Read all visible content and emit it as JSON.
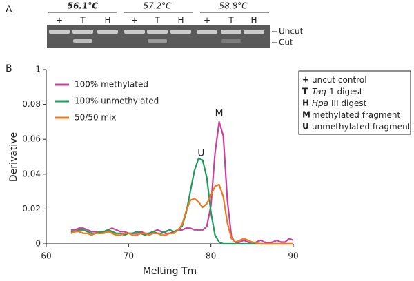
{
  "panel_a": {
    "label": "A",
    "temperatures": [
      "56.1°C",
      "57.2°C",
      "58.8°C"
    ],
    "lanes": [
      "+",
      "T",
      "H"
    ],
    "bands": [
      "Uncut",
      "Cut"
    ]
  },
  "key": [
    {
      "symbol": "+",
      "text": "uncut control"
    },
    {
      "symbol": "T",
      "italic": "Taq",
      "text": "1 digest"
    },
    {
      "symbol": "H",
      "italic": "Hpa",
      "text": "III digest"
    },
    {
      "symbol": "M",
      "text": "methylated fragment"
    },
    {
      "symbol": "U",
      "text": "unmethylated fragment"
    }
  ],
  "chart_data": {
    "type": "line",
    "panel_label": "B",
    "x_label": "Melting Tm",
    "y_label": "Derivative",
    "xlim": [
      60,
      90
    ],
    "xticks": [
      60,
      70,
      80,
      90
    ],
    "ylim": [
      0,
      0.1
    ],
    "yticks": [
      0,
      0.02,
      0.04,
      0.06,
      0.08,
      {
        "value": 0.1,
        "label": "1"
      }
    ],
    "annotations": [
      {
        "text": "U",
        "x": 78.8,
        "y": 0.052
      },
      {
        "text": "M",
        "x": 81,
        "y": 0.075
      }
    ],
    "x": [
      63,
      63.5,
      64,
      64.5,
      65,
      65.5,
      66,
      66.5,
      67,
      67.5,
      68,
      68.5,
      69,
      69.5,
      70,
      70.5,
      71,
      71.5,
      72,
      72.5,
      73,
      73.5,
      74,
      74.5,
      75,
      75.5,
      76,
      76.5,
      77,
      77.5,
      78,
      78.5,
      79,
      79.5,
      80,
      80.5,
      81,
      81.5,
      82,
      82.5,
      83,
      83.5,
      84,
      84.5,
      85,
      85.5,
      86,
      86.5,
      87,
      87.5,
      88,
      88.5,
      89,
      89.5,
      90
    ],
    "series": [
      {
        "name": "100% methylated",
        "color": "#c8409a",
        "values": [
          0.008,
          0.008,
          0.009,
          0.009,
          0.008,
          0.007,
          0.007,
          0.006,
          0.007,
          0.008,
          0.009,
          0.008,
          0.007,
          0.007,
          0.006,
          0.006,
          0.006,
          0.007,
          0.006,
          0.006,
          0.007,
          0.008,
          0.007,
          0.006,
          0.006,
          0.007,
          0.008,
          0.008,
          0.009,
          0.009,
          0.008,
          0.008,
          0.008,
          0.01,
          0.022,
          0.052,
          0.07,
          0.062,
          0.025,
          0.004,
          0.0005,
          0.001,
          0.002,
          0.001,
          0,
          0.001,
          0.002,
          0.001,
          0.0005,
          0.001,
          0.002,
          0.001,
          0.001,
          0.003,
          0.002
        ]
      },
      {
        "name": "100% unmethylated",
        "color": "#1e9a5a",
        "values": [
          0.007,
          0.007,
          0.008,
          0.008,
          0.007,
          0.006,
          0.006,
          0.007,
          0.007,
          0.008,
          0.007,
          0.006,
          0.006,
          0.005,
          0.006,
          0.006,
          0.007,
          0.006,
          0.005,
          0.006,
          0.007,
          0.006,
          0.006,
          0.007,
          0.008,
          0.007,
          0.008,
          0.01,
          0.018,
          0.03,
          0.042,
          0.049,
          0.048,
          0.038,
          0.018,
          0.005,
          0.001,
          0,
          0,
          0,
          0,
          0,
          0,
          0,
          0,
          0,
          0,
          0,
          0,
          0,
          0,
          0,
          0,
          0,
          0
        ]
      },
      {
        "name": "50/50 mix",
        "color": "#f07820",
        "values": [
          0.006,
          0.007,
          0.007,
          0.006,
          0.006,
          0.005,
          0.006,
          0.006,
          0.006,
          0.007,
          0.006,
          0.005,
          0.005,
          0.006,
          0.006,
          0.005,
          0.005,
          0.006,
          0.006,
          0.005,
          0.006,
          0.006,
          0.005,
          0.005,
          0.006,
          0.006,
          0.008,
          0.011,
          0.019,
          0.025,
          0.026,
          0.024,
          0.021,
          0.023,
          0.028,
          0.033,
          0.034,
          0.027,
          0.012,
          0.003,
          0.001,
          0.002,
          0.003,
          0.002,
          0.001,
          0.0005,
          0,
          0,
          0,
          0,
          0,
          0,
          0,
          0,
          0
        ]
      }
    ]
  }
}
